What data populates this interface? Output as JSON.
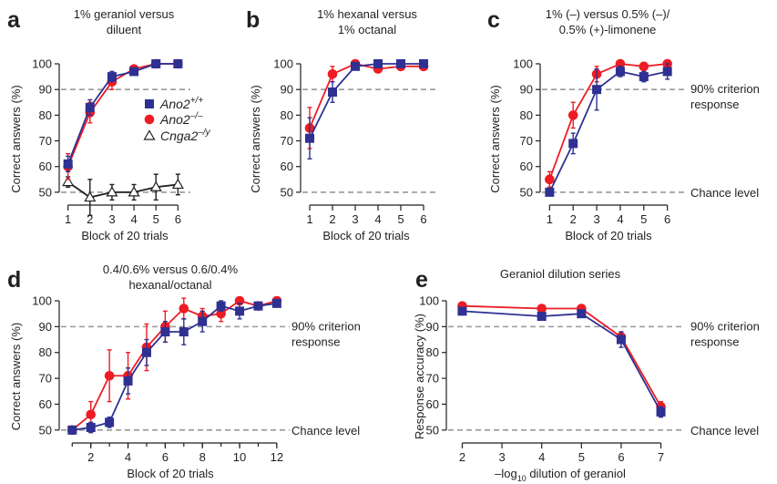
{
  "colors": {
    "wt": "#2e3192",
    "ko": "#ed1c24",
    "cnga": "#231f20",
    "ref": "#999999"
  },
  "chart_data": [
    {
      "id": "a",
      "type": "line",
      "panel_label": "a",
      "title": [
        "1% geraniol versus",
        "diluent"
      ],
      "xlabel": "Block of 20 trials",
      "ylabel": "Correct answers (%)",
      "xlim": [
        0.6,
        6.4
      ],
      "ylim": [
        45,
        100
      ],
      "xticks": [
        1,
        2,
        3,
        4,
        5,
        6
      ],
      "yticks": [
        50,
        60,
        70,
        80,
        90,
        100
      ],
      "reference_lines": [
        90,
        50
      ],
      "legend": {
        "placement": "center-right",
        "entries": [
          {
            "base": "Ano2",
            "sup": "+/+",
            "series": "wt"
          },
          {
            "base": "Ano2",
            "sup": "–/–",
            "series": "ko"
          },
          {
            "base": "Cnga2",
            "sup": "–/y",
            "series": "cnga"
          }
        ]
      },
      "series": [
        {
          "key": "wt",
          "x": [
            1,
            2,
            3,
            4,
            5,
            6
          ],
          "y": [
            61,
            83,
            95,
            97,
            100,
            100
          ],
          "err": [
            3,
            3,
            2,
            1,
            0,
            0
          ]
        },
        {
          "key": "ko",
          "x": [
            1,
            2,
            3,
            4,
            5,
            6
          ],
          "y": [
            60,
            81,
            93,
            98,
            100,
            100
          ],
          "err": [
            5,
            4,
            3,
            1,
            0,
            0
          ]
        },
        {
          "key": "cnga",
          "x": [
            1,
            2,
            3,
            4,
            5,
            6
          ],
          "y": [
            54,
            48,
            50,
            50,
            52,
            53
          ],
          "err": [
            2,
            7,
            3,
            3,
            5,
            4
          ]
        }
      ]
    },
    {
      "id": "b",
      "type": "line",
      "panel_label": "b",
      "title": [
        "1% hexanal versus",
        "1% octanal"
      ],
      "xlabel": "Block of 20 trials",
      "ylabel": "Correct answers (%)",
      "xlim": [
        0.6,
        6.4
      ],
      "ylim": [
        45,
        100
      ],
      "xticks": [
        1,
        2,
        3,
        4,
        5,
        6
      ],
      "yticks": [
        50,
        60,
        70,
        80,
        90,
        100
      ],
      "reference_lines": [
        90,
        50
      ],
      "series": [
        {
          "key": "wt",
          "x": [
            1,
            2,
            3,
            4,
            5,
            6
          ],
          "y": [
            71,
            89,
            99,
            100,
            100,
            100
          ],
          "err": [
            8,
            4,
            1,
            0,
            0,
            0
          ]
        },
        {
          "key": "ko",
          "x": [
            1,
            2,
            3,
            4,
            5,
            6
          ],
          "y": [
            75,
            96,
            100,
            98,
            99,
            99
          ],
          "err": [
            8,
            3,
            1,
            1,
            1,
            1
          ]
        }
      ]
    },
    {
      "id": "c",
      "type": "line",
      "panel_label": "c",
      "title": [
        "1% (–) versus 0.5% (–)/",
        "0.5% (+)-limonene"
      ],
      "xlabel": "Block of 20 trials",
      "ylabel": "Correct answers (%)",
      "xlim": [
        0.6,
        6.4
      ],
      "ylim": [
        45,
        100
      ],
      "xticks": [
        1,
        2,
        3,
        4,
        5,
        6
      ],
      "yticks": [
        50,
        60,
        70,
        80,
        90,
        100
      ],
      "reference_lines": [
        90,
        50
      ],
      "annotations": [
        {
          "text": [
            "90% criterion",
            "response"
          ],
          "at": 90
        },
        {
          "text": [
            "Chance level"
          ],
          "at": 50
        }
      ],
      "series": [
        {
          "key": "wt",
          "x": [
            1,
            2,
            3,
            4,
            5,
            6
          ],
          "y": [
            50,
            69,
            90,
            97,
            95,
            97
          ],
          "err": [
            1,
            4,
            8,
            2,
            2,
            3
          ]
        },
        {
          "key": "ko",
          "x": [
            1,
            2,
            3,
            4,
            5,
            6
          ],
          "y": [
            55,
            80,
            96,
            100,
            99,
            100
          ],
          "err": [
            3,
            5,
            3,
            1,
            1,
            1
          ]
        }
      ]
    },
    {
      "id": "d",
      "type": "line",
      "panel_label": "d",
      "title": [
        "0.4/0.6% versus 0.6/0.4%",
        "hexanal/octanal"
      ],
      "xlabel": "Block of 20 trials",
      "ylabel": "Correct answers (%)",
      "xlim": [
        0.3,
        12.3
      ],
      "ylim": [
        45,
        100
      ],
      "xticks": [
        2,
        4,
        6,
        8,
        10,
        12
      ],
      "yticks": [
        50,
        60,
        70,
        80,
        90,
        100
      ],
      "reference_lines": [
        90,
        50
      ],
      "annotations": [
        {
          "text": [
            "90% criterion",
            "response"
          ],
          "at": 90
        },
        {
          "text": [
            "Chance level"
          ],
          "at": 50
        }
      ],
      "series": [
        {
          "key": "wt",
          "x": [
            1,
            2,
            3,
            4,
            5,
            6,
            7,
            8,
            9,
            10,
            11,
            12
          ],
          "y": [
            50,
            51,
            53,
            69,
            80,
            88,
            88,
            92,
            98,
            96,
            98,
            99
          ],
          "err": [
            0,
            2,
            2,
            5,
            5,
            4,
            5,
            4,
            2,
            3,
            1,
            1
          ]
        },
        {
          "key": "ko",
          "x": [
            1,
            2,
            3,
            4,
            5,
            6,
            7,
            8,
            9,
            10,
            11,
            12
          ],
          "y": [
            50,
            56,
            71,
            71,
            82,
            90,
            97,
            94,
            95,
            100,
            98,
            100
          ],
          "err": [
            0,
            5,
            10,
            9,
            9,
            6,
            4,
            3,
            3,
            1,
            1,
            1
          ]
        }
      ]
    },
    {
      "id": "e",
      "type": "line",
      "panel_label": "e",
      "title": [
        "Geraniol dilution series"
      ],
      "xlabel": "–log",
      "xlabel_sub": "10",
      "xlabel_tail": " dilution of geraniol",
      "ylabel": "Response accuracy (%)",
      "xlim": [
        1.6,
        7.4
      ],
      "ylim": [
        45,
        100
      ],
      "xticks": [
        2,
        3,
        4,
        5,
        6,
        7
      ],
      "yticks": [
        50,
        60,
        70,
        80,
        90,
        100
      ],
      "reference_lines": [
        90,
        50
      ],
      "annotations": [
        {
          "text": [
            "90% criterion",
            "response"
          ],
          "at": 90
        },
        {
          "text": [
            "Chance level"
          ],
          "at": 50
        }
      ],
      "series": [
        {
          "key": "wt",
          "x": [
            2,
            4,
            5,
            6,
            7
          ],
          "y": [
            96,
            94,
            95,
            85,
            57
          ],
          "err": [
            1,
            1,
            1,
            3,
            2
          ]
        },
        {
          "key": "ko",
          "x": [
            2,
            4,
            5,
            6,
            7
          ],
          "y": [
            98,
            97,
            97,
            86,
            59
          ],
          "err": [
            1,
            1,
            1,
            2,
            2
          ]
        }
      ]
    }
  ]
}
